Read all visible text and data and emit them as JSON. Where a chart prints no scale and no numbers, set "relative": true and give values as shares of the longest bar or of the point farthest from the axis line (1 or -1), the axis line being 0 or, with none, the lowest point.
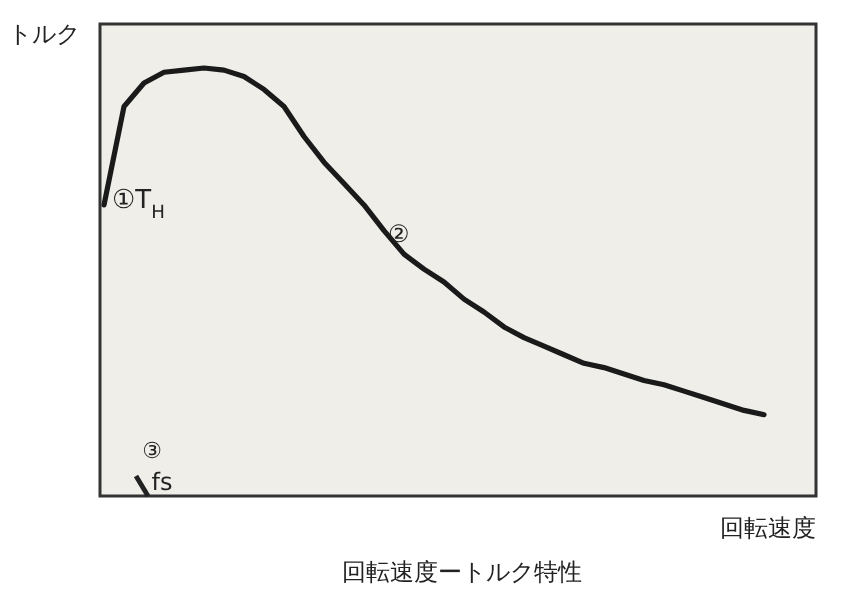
{
  "chart_data": {
    "type": "line",
    "title": "回転速度ートルク特性",
    "xlabel": "回転速度",
    "ylabel": "トルク",
    "relative": true,
    "categories": [
      null,
      null,
      null,
      null,
      null,
      null,
      null,
      null,
      null,
      null,
      null,
      null,
      null,
      null,
      null,
      null,
      null,
      null,
      null,
      null,
      null,
      null,
      null,
      null,
      null,
      null,
      null,
      null,
      null,
      null,
      null,
      null,
      null,
      null,
      null,
      null
    ],
    "series": [
      {
        "color": "#1a1a1a",
        "values": [
          0.68,
          0.91,
          0.965,
          0.99,
          0.995,
          1.0,
          0.995,
          0.98,
          0.95,
          0.91,
          0.84,
          0.78,
          0.73,
          0.68,
          0.62,
          0.565,
          0.53,
          0.5,
          0.46,
          0.43,
          0.395,
          0.37,
          0.35,
          0.33,
          0.31,
          0.3,
          0.285,
          0.27,
          0.26,
          0.245,
          0.23,
          0.215,
          0.2,
          0.19,
          null,
          null
        ]
      }
    ],
    "annotations": [
      "①T$_{H}$",
      "②",
      "③",
      "fs"
    ]
  }
}
